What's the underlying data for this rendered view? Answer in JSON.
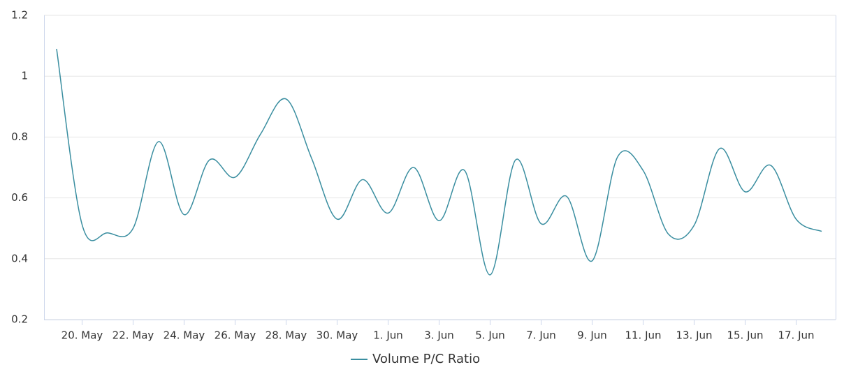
{
  "chart_data": {
    "type": "line",
    "categories": [
      null,
      "20. May",
      null,
      "22. May",
      null,
      "24. May",
      null,
      "26. May",
      null,
      "28. May",
      null,
      "30. May",
      null,
      "1. Jun",
      null,
      "3. Jun",
      null,
      "5. Jun",
      null,
      "7. Jun",
      null,
      "9. Jun",
      null,
      "11. Jun",
      null,
      "13. Jun",
      null,
      "15. Jun",
      null,
      "17. Jun",
      null
    ],
    "series": [
      {
        "name": "Volume P/C Ratio",
        "color": "#3a8ea0",
        "values": [
          1.09,
          0.512,
          0.485,
          0.5,
          0.785,
          0.545,
          0.725,
          0.668,
          0.81,
          0.925,
          0.73,
          0.53,
          0.66,
          0.55,
          0.7,
          0.525,
          0.69,
          0.347,
          0.725,
          0.515,
          0.605,
          0.393,
          0.735,
          0.69,
          0.48,
          0.51,
          0.762,
          0.62,
          0.707,
          0.53,
          0.49
        ]
      }
    ],
    "ylim": [
      0.2,
      1.2
    ],
    "yticks": [
      0.2,
      0.4,
      0.6,
      0.8,
      1,
      1.2
    ],
    "grid": true,
    "legend": "bottom"
  }
}
